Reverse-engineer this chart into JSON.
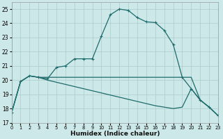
{
  "xlabel": "Humidex (Indice chaleur)",
  "background_color": "#cde8e8",
  "grid_color": "#aacccc",
  "line_color": "#1e6b6b",
  "xlim": [
    0,
    23
  ],
  "ylim": [
    17.0,
    25.5
  ],
  "yticks": [
    17,
    18,
    19,
    20,
    21,
    22,
    23,
    24,
    25
  ],
  "xticks": [
    0,
    1,
    2,
    3,
    4,
    5,
    6,
    7,
    8,
    9,
    10,
    11,
    12,
    13,
    14,
    15,
    16,
    17,
    18,
    19,
    20,
    21,
    22,
    23
  ],
  "series_main_x": [
    0,
    1,
    2,
    3,
    4,
    5,
    6,
    7,
    8,
    9,
    10,
    11,
    12,
    13,
    14,
    15,
    16,
    17,
    18,
    19,
    20,
    21,
    22,
    23
  ],
  "series_main_y": [
    17.7,
    19.9,
    20.3,
    20.2,
    20.1,
    20.9,
    21.0,
    21.5,
    21.5,
    21.5,
    23.1,
    24.6,
    25.0,
    24.9,
    24.4,
    24.1,
    24.05,
    23.5,
    22.5,
    20.2,
    19.4,
    18.6,
    18.1,
    17.5
  ],
  "series_flat_x": [
    0,
    1,
    2,
    3,
    4,
    5,
    6,
    7,
    8,
    9,
    10,
    11,
    12,
    13,
    14,
    15,
    16,
    17,
    18,
    19,
    20,
    21,
    22,
    23
  ],
  "series_flat_y": [
    17.7,
    19.9,
    20.3,
    20.2,
    20.2,
    20.2,
    20.2,
    20.2,
    20.2,
    20.2,
    20.2,
    20.2,
    20.2,
    20.2,
    20.2,
    20.2,
    20.2,
    20.2,
    20.2,
    20.2,
    20.2,
    18.6,
    18.1,
    17.5
  ],
  "series_diag_x": [
    0,
    1,
    2,
    3,
    4,
    5,
    6,
    7,
    8,
    9,
    10,
    11,
    12,
    13,
    14,
    15,
    16,
    17,
    18,
    19,
    20,
    21,
    22,
    23
  ],
  "series_diag_y": [
    17.7,
    19.9,
    20.3,
    20.2,
    20.0,
    19.85,
    19.7,
    19.55,
    19.4,
    19.25,
    19.1,
    18.95,
    18.8,
    18.65,
    18.5,
    18.35,
    18.2,
    18.1,
    18.0,
    18.1,
    19.4,
    18.6,
    18.1,
    17.5
  ]
}
